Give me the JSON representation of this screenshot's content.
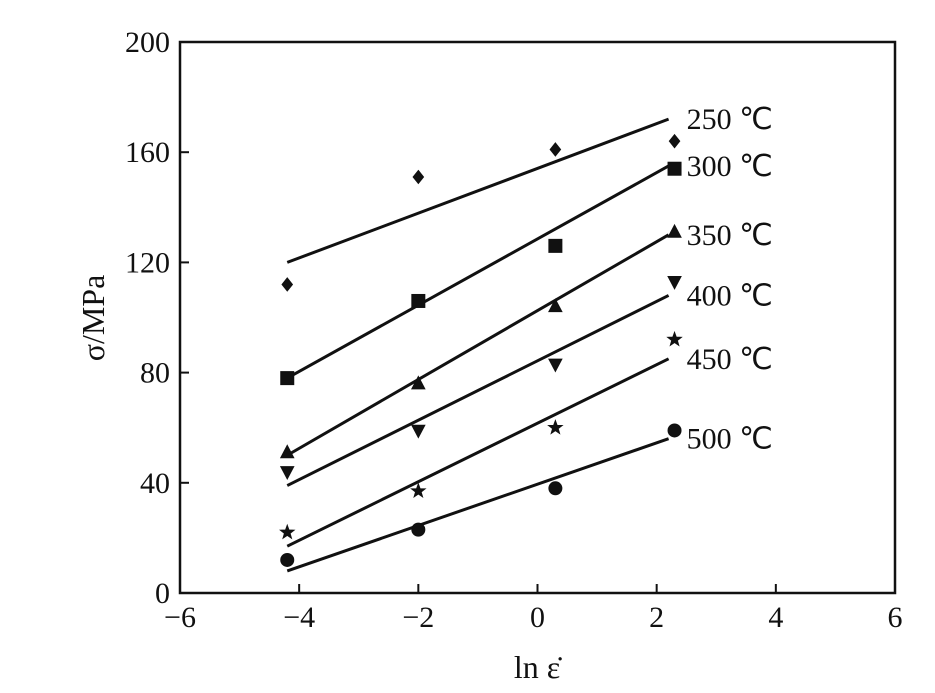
{
  "chart_data": {
    "type": "scatter",
    "title": "",
    "xlabel": "ln ε̇",
    "ylabel": "σ/MPa",
    "xlim": [
      -6,
      6
    ],
    "ylim": [
      0,
      200
    ],
    "xticks": [
      -6,
      -4,
      -2,
      0,
      2,
      4,
      6
    ],
    "xtick_labels": [
      "−6",
      "−4",
      "−2",
      "0",
      "2",
      "4",
      "6"
    ],
    "yticks": [
      0,
      40,
      80,
      120,
      160,
      200
    ],
    "ytick_labels": [
      "0",
      "40",
      "80",
      "120",
      "160",
      "200"
    ],
    "grid": false,
    "legend": "none",
    "series": [
      {
        "name": "250 ℃",
        "marker": "diamond",
        "x": [
          -4.2,
          -2.0,
          0.3,
          2.3
        ],
        "y": [
          112,
          151,
          161,
          164
        ],
        "fit": {
          "x": [
            -4.2,
            2.2
          ],
          "y": [
            120,
            172
          ]
        }
      },
      {
        "name": "300 ℃",
        "marker": "square",
        "x": [
          -4.2,
          -2.0,
          0.3,
          2.3
        ],
        "y": [
          78,
          106,
          126,
          154
        ],
        "fit": {
          "x": [
            -4.2,
            2.2
          ],
          "y": [
            78,
            155
          ]
        }
      },
      {
        "name": "350 ℃",
        "marker": "triangle-up",
        "x": [
          -4.2,
          -2.0,
          0.3,
          2.3
        ],
        "y": [
          51,
          76,
          104,
          131
        ],
        "fit": {
          "x": [
            -4.2,
            2.2
          ],
          "y": [
            50,
            130
          ]
        }
      },
      {
        "name": "400 ℃",
        "marker": "triangle-down",
        "x": [
          -4.2,
          -2.0,
          0.3,
          2.3
        ],
        "y": [
          44,
          59,
          83,
          113
        ],
        "fit": {
          "x": [
            -4.2,
            2.2
          ],
          "y": [
            39,
            108
          ]
        }
      },
      {
        "name": "450 ℃",
        "marker": "star",
        "x": [
          -4.2,
          -2.0,
          0.3,
          2.3
        ],
        "y": [
          22,
          37,
          60,
          92
        ],
        "fit": {
          "x": [
            -4.2,
            2.2
          ],
          "y": [
            17,
            85
          ]
        }
      },
      {
        "name": "500 ℃",
        "marker": "circle",
        "x": [
          -4.2,
          -2.0,
          0.3,
          2.3
        ],
        "y": [
          12,
          23,
          38,
          59
        ],
        "fit": {
          "x": [
            -4.2,
            2.2
          ],
          "y": [
            8,
            56
          ]
        }
      }
    ]
  }
}
